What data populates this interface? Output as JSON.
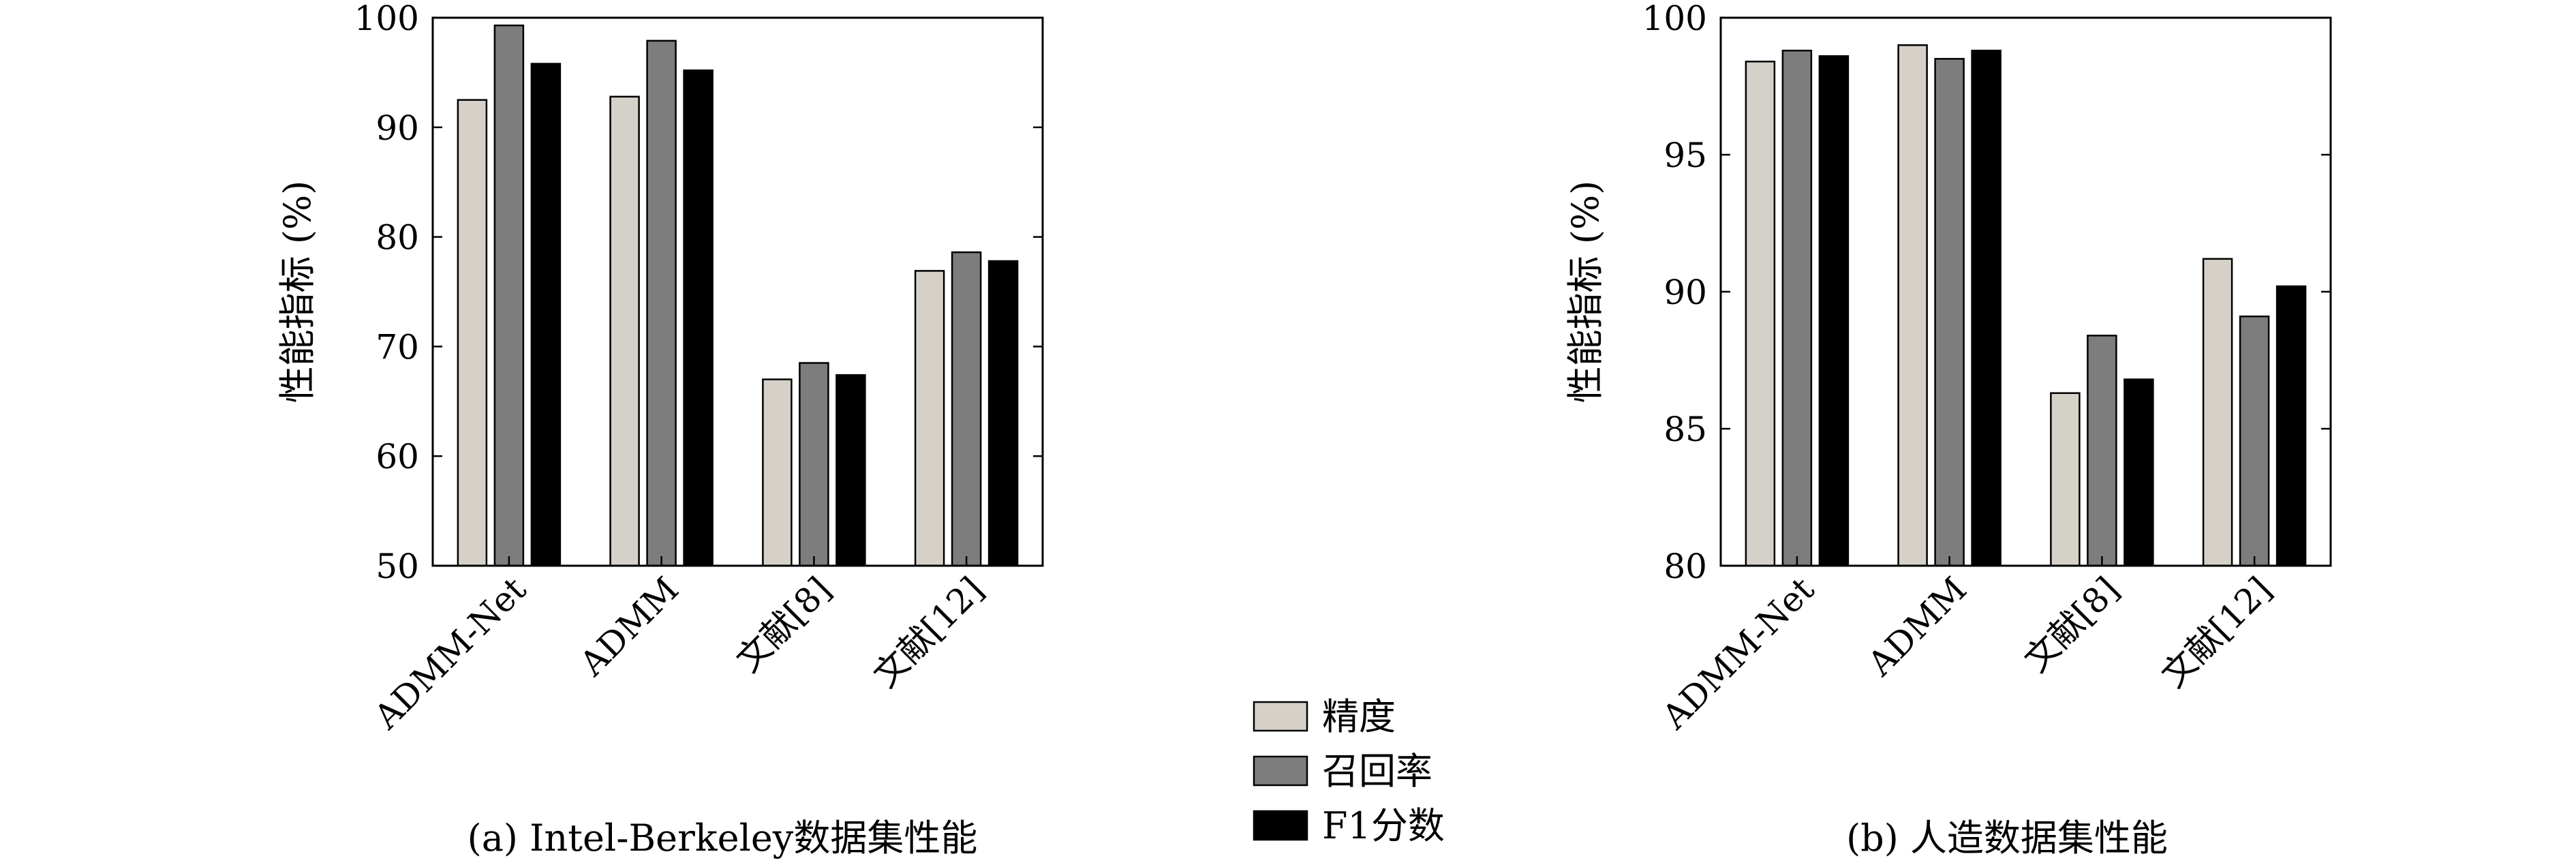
{
  "legend": {
    "placement": "bottom-center",
    "items": [
      {
        "label": "精度",
        "color": "#d6d1c8"
      },
      {
        "label": "召回率",
        "color": "#7d7d7d"
      },
      {
        "label": "F1分数",
        "color": "#000000"
      }
    ]
  },
  "chart_data": [
    {
      "type": "bar",
      "caption": "(a) Intel-Berkeley数据集性能",
      "categories": [
        "ADMM-Net",
        "ADMM",
        "文献[8]",
        "文献[12]"
      ],
      "ylabel": "性能指标 (%)",
      "ylim": [
        50,
        100
      ],
      "yticks": [
        50,
        60,
        70,
        80,
        90,
        100
      ],
      "grid": false,
      "series": [
        {
          "name": "精度",
          "values": [
            92.5,
            92.8,
            67.0,
            76.9
          ]
        },
        {
          "name": "召回率",
          "values": [
            99.3,
            97.9,
            68.5,
            78.6
          ]
        },
        {
          "name": "F1分数",
          "values": [
            95.8,
            95.2,
            67.4,
            77.8
          ]
        }
      ]
    },
    {
      "type": "bar",
      "caption": "(b) 人造数据集性能",
      "categories": [
        "ADMM-Net",
        "ADMM",
        "文献[8]",
        "文献[12]"
      ],
      "ylabel": "性能指标 (%)",
      "ylim": [
        80,
        100
      ],
      "yticks": [
        80,
        85,
        90,
        95,
        100
      ],
      "grid": false,
      "series": [
        {
          "name": "精度",
          "values": [
            98.4,
            99.0,
            86.3,
            91.2
          ]
        },
        {
          "name": "召回率",
          "values": [
            98.8,
            98.5,
            88.4,
            89.1
          ]
        },
        {
          "name": "F1分数",
          "values": [
            98.6,
            98.8,
            86.8,
            90.2
          ]
        }
      ]
    }
  ]
}
